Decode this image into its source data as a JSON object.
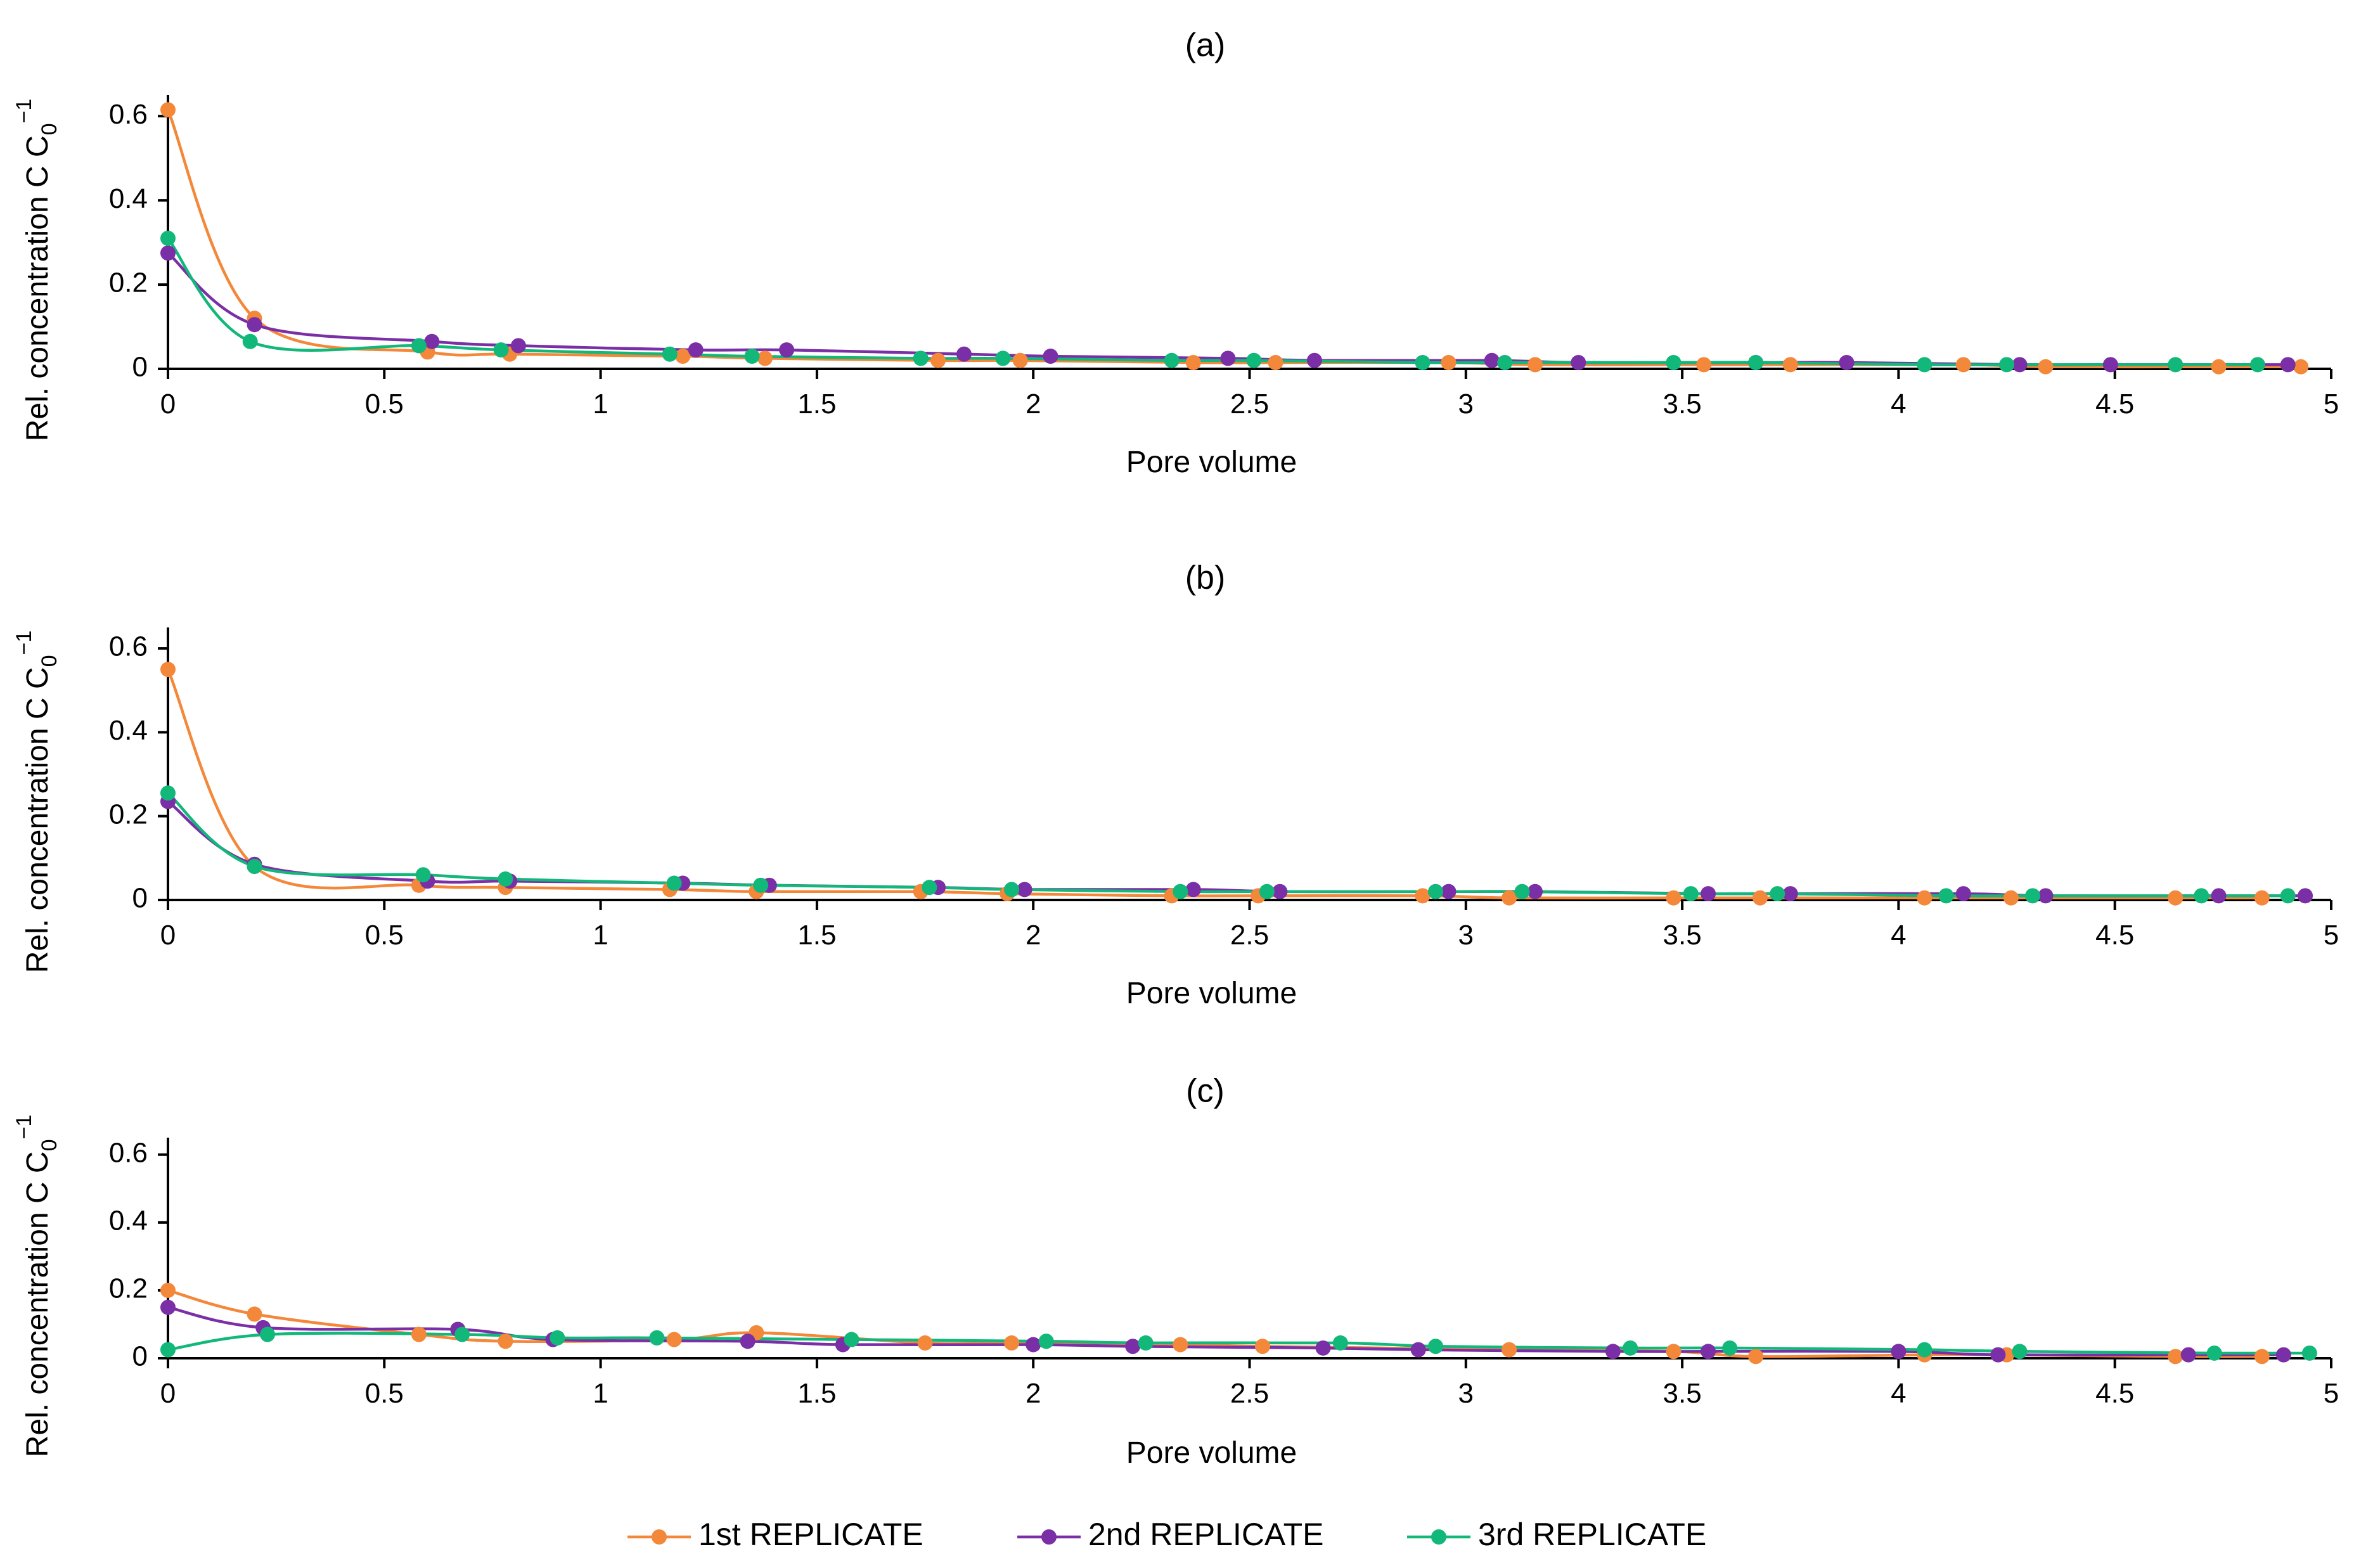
{
  "colors": {
    "series1": "#F4883A",
    "series2": "#7A2FA6",
    "series3": "#12B77A",
    "axis": "#000000"
  },
  "legend": {
    "position": "bottom-center",
    "items": [
      "1st REPLICATE",
      "2nd REPLICATE",
      "3rd REPLICATE"
    ]
  },
  "chart_data": [
    {
      "type": "line",
      "title": "(a)",
      "xlabel": "Pore volume",
      "ylabel": "Rel. concentration C C",
      "ylabel_sub": "0",
      "ylabel_sup": "−1",
      "xlim": [
        0,
        5
      ],
      "ylim": [
        0,
        0.65
      ],
      "xticks": [
        "0",
        "0.5",
        "1",
        "1.5",
        "2",
        "2.5",
        "3",
        "3.5",
        "4",
        "4.5",
        "5"
      ],
      "yticks": [
        "0",
        "0.2",
        "0.4",
        "0.6"
      ],
      "grid": false,
      "series": [
        {
          "name": "1st REPLICATE",
          "x": [
            0,
            0.2,
            0.6,
            0.79,
            1.19,
            1.38,
            1.78,
            1.97,
            2.37,
            2.56,
            2.96,
            3.16,
            3.55,
            3.75,
            4.15,
            4.34,
            4.74,
            4.93
          ],
          "y": [
            0.615,
            0.12,
            0.04,
            0.035,
            0.03,
            0.025,
            0.02,
            0.02,
            0.015,
            0.015,
            0.015,
            0.01,
            0.01,
            0.01,
            0.01,
            0.005,
            0.005,
            0.005
          ]
        },
        {
          "name": "2nd REPLICATE",
          "x": [
            0,
            0.2,
            0.61,
            0.81,
            1.22,
            1.43,
            1.84,
            2.04,
            2.45,
            2.65,
            3.06,
            3.26,
            3.67,
            3.88,
            4.28,
            4.49,
            4.9
          ],
          "y": [
            0.275,
            0.105,
            0.065,
            0.055,
            0.045,
            0.045,
            0.035,
            0.03,
            0.025,
            0.02,
            0.02,
            0.015,
            0.015,
            0.015,
            0.01,
            0.01,
            0.01
          ]
        },
        {
          "name": "3rd REPLICATE",
          "x": [
            0,
            0.19,
            0.58,
            0.77,
            1.16,
            1.35,
            1.74,
            1.93,
            2.32,
            2.51,
            2.9,
            3.09,
            3.48,
            3.67,
            4.06,
            4.25,
            4.64,
            4.83
          ],
          "y": [
            0.31,
            0.065,
            0.055,
            0.045,
            0.035,
            0.03,
            0.025,
            0.025,
            0.02,
            0.02,
            0.015,
            0.015,
            0.015,
            0.015,
            0.01,
            0.01,
            0.01,
            0.01
          ]
        }
      ]
    },
    {
      "type": "line",
      "title": "(b)",
      "xlabel": "Pore volume",
      "ylabel": "Rel. concentration C C",
      "ylabel_sub": "0",
      "ylabel_sup": "−1",
      "xlim": [
        0,
        5
      ],
      "ylim": [
        0,
        0.65
      ],
      "xticks": [
        "0",
        "0.5",
        "1",
        "1.5",
        "2",
        "2.5",
        "3",
        "3.5",
        "4",
        "4.5",
        "5"
      ],
      "yticks": [
        "0",
        "0.2",
        "0.4",
        "0.6"
      ],
      "grid": false,
      "series": [
        {
          "name": "1st REPLICATE",
          "x": [
            0,
            0.2,
            0.58,
            0.78,
            1.16,
            1.36,
            1.74,
            1.94,
            2.32,
            2.52,
            2.9,
            3.1,
            3.48,
            3.68,
            4.06,
            4.26,
            4.64,
            4.84
          ],
          "y": [
            0.55,
            0.08,
            0.035,
            0.03,
            0.025,
            0.02,
            0.02,
            0.015,
            0.01,
            0.01,
            0.01,
            0.005,
            0.005,
            0.005,
            0.005,
            0.005,
            0.005,
            0.005
          ]
        },
        {
          "name": "2nd REPLICATE",
          "x": [
            0,
            0.2,
            0.6,
            0.79,
            1.19,
            1.39,
            1.78,
            1.98,
            2.37,
            2.57,
            2.96,
            3.16,
            3.56,
            3.75,
            4.15,
            4.34,
            4.74,
            4.94
          ],
          "y": [
            0.235,
            0.085,
            0.045,
            0.045,
            0.04,
            0.035,
            0.03,
            0.025,
            0.025,
            0.02,
            0.02,
            0.02,
            0.015,
            0.015,
            0.015,
            0.01,
            0.01,
            0.01
          ]
        },
        {
          "name": "3rd REPLICATE",
          "x": [
            0,
            0.2,
            0.59,
            0.78,
            1.17,
            1.37,
            1.76,
            1.95,
            2.34,
            2.54,
            2.93,
            3.13,
            3.52,
            3.72,
            4.11,
            4.31,
            4.7,
            4.9
          ],
          "y": [
            0.255,
            0.08,
            0.06,
            0.05,
            0.04,
            0.035,
            0.03,
            0.025,
            0.02,
            0.02,
            0.02,
            0.02,
            0.015,
            0.015,
            0.01,
            0.01,
            0.01,
            0.01
          ]
        }
      ]
    },
    {
      "type": "line",
      "title": "(c)",
      "xlabel": "Pore volume",
      "ylabel": "Rel. concentration C C",
      "ylabel_sub": "0",
      "ylabel_sup": "−1",
      "xlim": [
        0,
        5
      ],
      "ylim": [
        0,
        0.65
      ],
      "xticks": [
        "0",
        "0.5",
        "1",
        "1.5",
        "2",
        "2.5",
        "3",
        "3.5",
        "4",
        "4.5",
        "5"
      ],
      "yticks": [
        "0",
        "0.2",
        "0.4",
        "0.6"
      ],
      "grid": false,
      "series": [
        {
          "name": "1st REPLICATE",
          "x": [
            0,
            0.2,
            0.58,
            0.78,
            1.17,
            1.36,
            1.75,
            1.95,
            2.34,
            2.53,
            3.1,
            3.48,
            3.67,
            4.06,
            4.25,
            4.64,
            4.84
          ],
          "y": [
            0.2,
            0.13,
            0.07,
            0.05,
            0.055,
            0.075,
            0.045,
            0.045,
            0.04,
            0.035,
            0.025,
            0.02,
            0.005,
            0.01,
            0.01,
            0.005,
            0.005
          ]
        },
        {
          "name": "2nd REPLICATE",
          "x": [
            0,
            0.22,
            0.67,
            0.89,
            1.34,
            1.56,
            2.0,
            2.23,
            2.67,
            2.89,
            3.34,
            3.56,
            4.0,
            4.23,
            4.67,
            4.89
          ],
          "y": [
            0.15,
            0.09,
            0.085,
            0.055,
            0.05,
            0.04,
            0.04,
            0.035,
            0.03,
            0.025,
            0.02,
            0.02,
            0.02,
            0.01,
            0.01,
            0.01
          ]
        },
        {
          "name": "3rd REPLICATE",
          "x": [
            0,
            0.23,
            0.68,
            0.9,
            1.13,
            1.58,
            2.03,
            2.26,
            2.71,
            2.93,
            3.38,
            3.61,
            4.06,
            4.28,
            4.73,
            4.95
          ],
          "y": [
            0.025,
            0.07,
            0.07,
            0.06,
            0.06,
            0.055,
            0.05,
            0.045,
            0.045,
            0.035,
            0.03,
            0.03,
            0.025,
            0.02,
            0.015,
            0.015
          ]
        }
      ]
    }
  ]
}
